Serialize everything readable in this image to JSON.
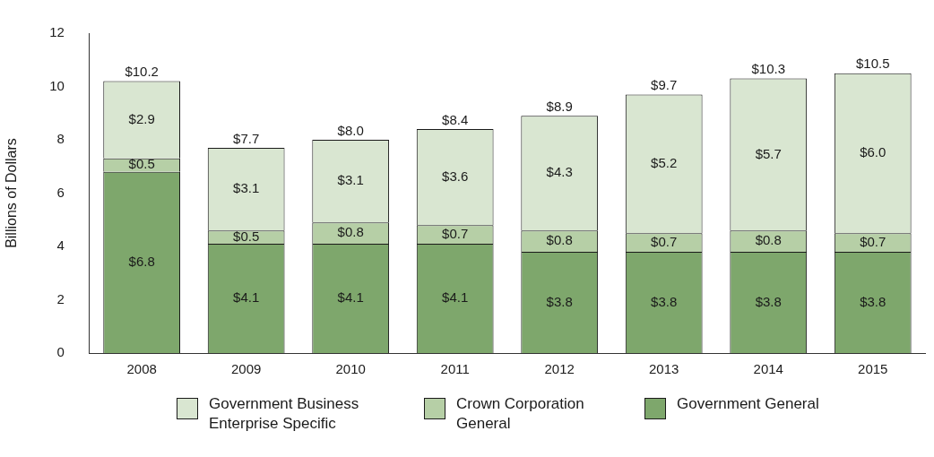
{
  "chart_data": {
    "type": "bar",
    "stacked": true,
    "ylabel": "Billions of Dollars",
    "categories": [
      "2008",
      "2009",
      "2010",
      "2011",
      "2012",
      "2013",
      "2014",
      "2015"
    ],
    "series": [
      {
        "name": "Government General",
        "color": "#7ea76c",
        "values": [
          6.8,
          4.1,
          4.1,
          4.1,
          3.8,
          3.8,
          3.8,
          3.8
        ],
        "value_labels": [
          "$6.8",
          "$4.1",
          "$4.1",
          "$4.1",
          "$3.8",
          "$3.8",
          "$3.8",
          "$3.8"
        ]
      },
      {
        "name": "Crown Corporation General",
        "color": "#b6cfa6",
        "values": [
          0.5,
          0.5,
          0.8,
          0.7,
          0.8,
          0.7,
          0.8,
          0.7
        ],
        "value_labels": [
          "$0.5",
          "$0.5",
          "$0.8",
          "$0.7",
          "$0.8",
          "$0.7",
          "$0.8",
          "$0.7"
        ]
      },
      {
        "name": "Government Business Enterprise Specific",
        "color": "#d9e6d1",
        "values": [
          2.9,
          3.1,
          3.1,
          3.6,
          4.3,
          5.2,
          5.7,
          6.0
        ],
        "value_labels": [
          "$2.9",
          "$3.1",
          "$3.1",
          "$3.6",
          "$4.3",
          "$5.2",
          "$5.7",
          "$6.0"
        ]
      }
    ],
    "totals": [
      "$10.2",
      "$7.7",
      "$8.0",
      "$8.4",
      "$8.9",
      "$9.7",
      "$10.3",
      "$10.5"
    ],
    "ylim": [
      0,
      12
    ],
    "yticks": [
      0,
      2,
      4,
      6,
      8,
      10,
      12
    ],
    "grid": false,
    "legend": "bottom"
  }
}
